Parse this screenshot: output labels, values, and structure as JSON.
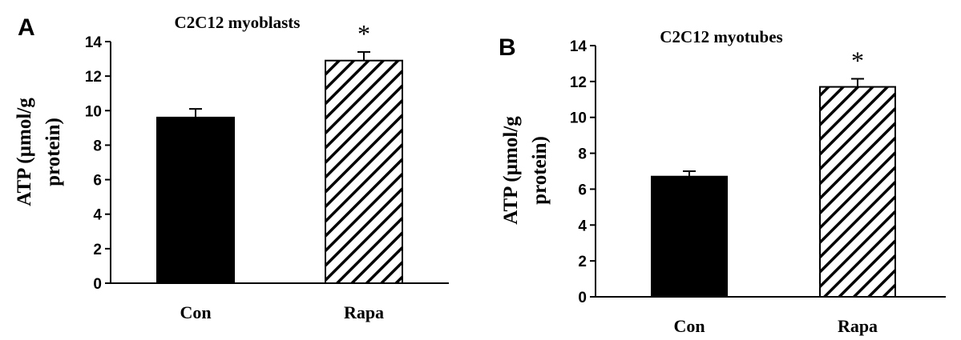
{
  "chart_data": [
    {
      "type": "bar",
      "panel": "A",
      "title": "C2C12 myoblasts",
      "ylabel": [
        "ATP (µmol/g",
        "protein)"
      ],
      "xlabel": "",
      "categories": [
        "Con",
        "Rapa"
      ],
      "values": [
        9.6,
        12.9
      ],
      "errors": [
        0.5,
        0.5
      ],
      "fills": [
        "solid",
        "hatched"
      ],
      "significance": [
        "",
        "*"
      ],
      "ylim": [
        0,
        14
      ],
      "yticks": [
        0,
        2,
        4,
        6,
        8,
        10,
        12,
        14
      ],
      "grid": false
    },
    {
      "type": "bar",
      "panel": "B",
      "title": "C2C12 myotubes",
      "ylabel": [
        "ATP (µmol/g",
        "protein)"
      ],
      "xlabel": "",
      "categories": [
        "Con",
        "Rapa"
      ],
      "values": [
        6.7,
        11.7
      ],
      "errors": [
        0.3,
        0.45
      ],
      "fills": [
        "solid",
        "hatched"
      ],
      "significance": [
        "",
        "*"
      ],
      "ylim": [
        0,
        14
      ],
      "yticks": [
        0,
        2,
        4,
        6,
        8,
        10,
        12,
        14
      ],
      "grid": false
    }
  ]
}
